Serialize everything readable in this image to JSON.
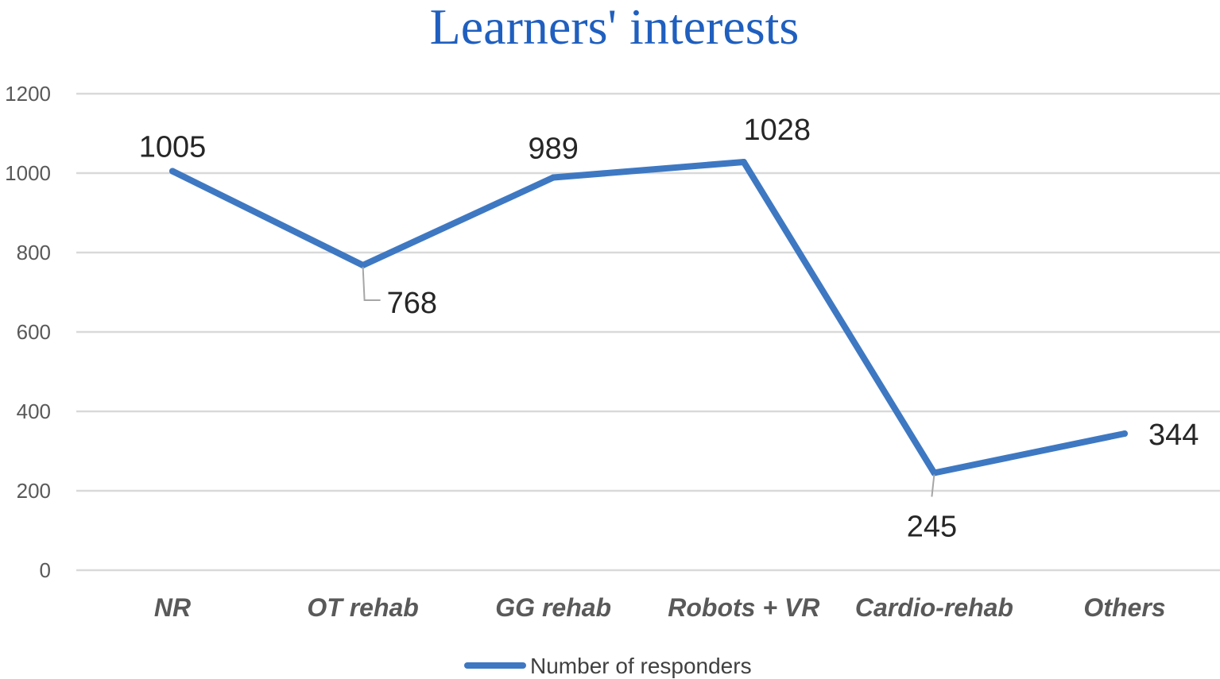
{
  "chart_data": {
    "type": "line",
    "title": "Learners' interests",
    "xlabel": "",
    "ylabel": "",
    "categories": [
      "NR",
      "OT rehab",
      "GG rehab",
      "Robots + VR",
      "Cardio-rehab",
      "Others"
    ],
    "series": [
      {
        "name": "Number of responders",
        "values": [
          1005,
          768,
          989,
          1028,
          245,
          344
        ],
        "data_labels": [
          "1005",
          "768",
          "989",
          "1028",
          "245",
          "344"
        ],
        "color": "#3e78c2"
      }
    ],
    "ylim": [
      0,
      1200
    ],
    "yticks": [
      0,
      200,
      400,
      600,
      800,
      1000,
      1200
    ],
    "ytick_labels": [
      "0",
      "200",
      "400",
      "600",
      "800",
      "1000",
      "1200"
    ],
    "grid": true,
    "legend": "bottom",
    "title_color": "#1f5fbf",
    "grid_color": "#d9d9d9"
  }
}
